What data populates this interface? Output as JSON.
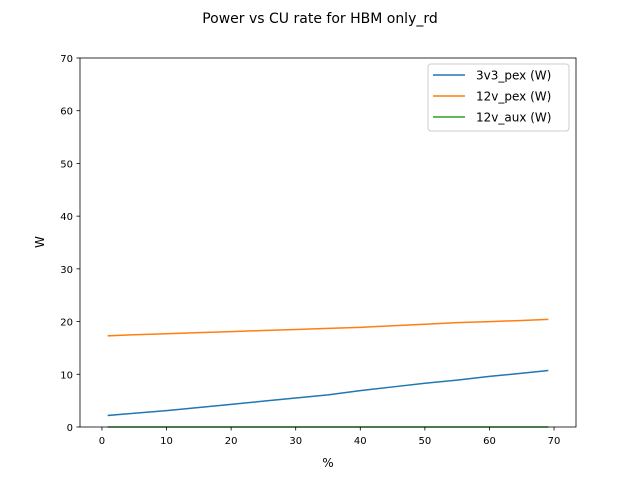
{
  "chart_data": {
    "type": "line",
    "title": "Power vs CU rate for HBM only_rd",
    "xlabel": "%",
    "ylabel": "W",
    "xlim": [
      -3.4,
      73.4
    ],
    "ylim": [
      0,
      70
    ],
    "xticks": [
      0,
      10,
      20,
      30,
      40,
      50,
      60,
      70
    ],
    "yticks": [
      0,
      10,
      20,
      30,
      40,
      50,
      60,
      70
    ],
    "grid": false,
    "legend_position": "top-right",
    "x": [
      1,
      5,
      10,
      15,
      20,
      25,
      30,
      35,
      40,
      45,
      50,
      55,
      60,
      65,
      69
    ],
    "series": [
      {
        "name": "3v3_pex (W)",
        "color": "#1f77b4",
        "values": [
          2.2,
          2.6,
          3.1,
          3.7,
          4.3,
          4.9,
          5.5,
          6.1,
          6.9,
          7.6,
          8.3,
          8.9,
          9.6,
          10.2,
          10.7
        ]
      },
      {
        "name": "12v_pex (W)",
        "color": "#ff7f0e",
        "values": [
          17.3,
          17.5,
          17.7,
          17.9,
          18.1,
          18.3,
          18.5,
          18.7,
          18.9,
          19.2,
          19.5,
          19.8,
          20.0,
          20.2,
          20.4
        ]
      },
      {
        "name": "12v_aux (W)",
        "color": "#2ca02c",
        "values": [
          0,
          0,
          0,
          0,
          0,
          0,
          0,
          0,
          0,
          0,
          0,
          0,
          0,
          0,
          0
        ]
      }
    ]
  }
}
